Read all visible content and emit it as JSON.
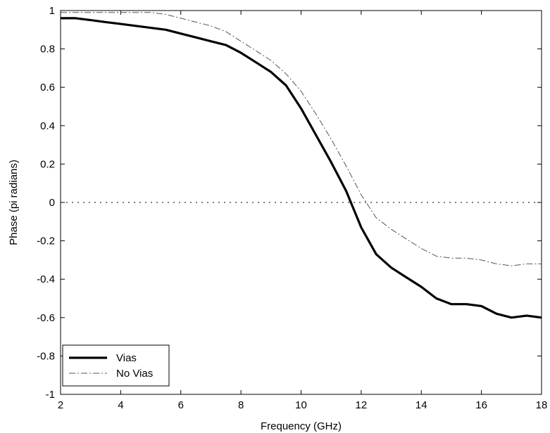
{
  "chart_data": {
    "type": "line",
    "title": "",
    "xlabel": "Frequency (GHz)",
    "ylabel": "Phase (pi radians)",
    "xlim": [
      2,
      18
    ],
    "ylim": [
      -1,
      1
    ],
    "xticks": [
      2,
      4,
      6,
      8,
      10,
      12,
      14,
      16,
      18
    ],
    "yticks": [
      -1,
      -0.8,
      -0.6,
      -0.4,
      -0.2,
      0,
      0.2,
      0.4,
      0.6,
      0.8,
      1
    ],
    "xtick_labels": [
      "2",
      "4",
      "6",
      "8",
      "10",
      "12",
      "14",
      "16",
      "18"
    ],
    "ytick_labels": [
      "-1",
      "-0.8",
      "-0.6",
      "-0.4",
      "-0.2",
      "0",
      "0.2",
      "0.4",
      "0.6",
      "0.8",
      "1"
    ],
    "grid": false,
    "legend_position": "bottom-left",
    "series": [
      {
        "name": "Vias",
        "style": "solid-thick",
        "color": "#000000",
        "x": [
          2,
          2.5,
          3,
          3.5,
          4,
          4.5,
          5,
          5.5,
          6,
          6.5,
          7,
          7.5,
          8,
          8.5,
          9,
          9.5,
          10,
          10.5,
          11,
          11.5,
          12,
          12.5,
          13,
          13.5,
          14,
          14.5,
          15,
          15.5,
          16,
          16.5,
          17,
          17.5,
          18
        ],
        "y": [
          0.96,
          0.96,
          0.95,
          0.94,
          0.93,
          0.92,
          0.91,
          0.9,
          0.88,
          0.86,
          0.84,
          0.82,
          0.78,
          0.73,
          0.68,
          0.61,
          0.49,
          0.35,
          0.21,
          0.06,
          -0.13,
          -0.27,
          -0.34,
          -0.39,
          -0.44,
          -0.5,
          -0.53,
          -0.53,
          -0.54,
          -0.58,
          -0.6,
          -0.59,
          -0.6
        ]
      },
      {
        "name": "No Vias",
        "style": "dash-dot-thin",
        "color": "#444444",
        "x": [
          2,
          2.5,
          3,
          3.5,
          4,
          4.5,
          5,
          5.5,
          6,
          6.5,
          7,
          7.5,
          8,
          8.5,
          9,
          9.5,
          10,
          10.5,
          11,
          11.5,
          12,
          12.5,
          13,
          13.5,
          14,
          14.5,
          15,
          15.5,
          16,
          16.5,
          17,
          17.5,
          18
        ],
        "y": [
          0.99,
          0.99,
          0.99,
          0.99,
          0.99,
          0.99,
          0.99,
          0.98,
          0.96,
          0.94,
          0.92,
          0.89,
          0.84,
          0.79,
          0.74,
          0.67,
          0.58,
          0.46,
          0.33,
          0.19,
          0.04,
          -0.08,
          -0.14,
          -0.19,
          -0.24,
          -0.28,
          -0.29,
          -0.29,
          -0.3,
          -0.32,
          -0.33,
          -0.32,
          -0.32
        ]
      },
      {
        "name": "",
        "style": "dotted",
        "color": "#000000",
        "x": [
          2,
          18
        ],
        "y": [
          0,
          0
        ]
      }
    ]
  }
}
